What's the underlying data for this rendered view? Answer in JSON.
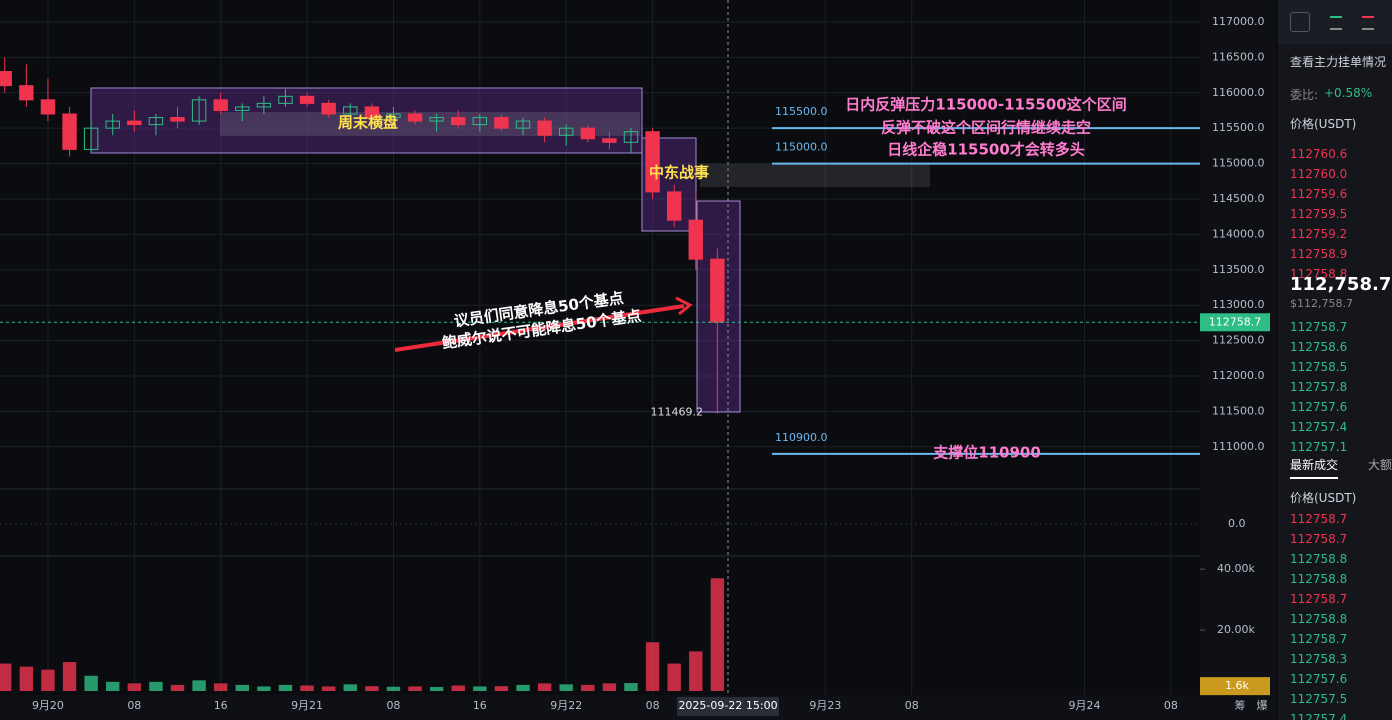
{
  "chart_data": {
    "type": "candlestick",
    "x": [
      -4,
      -2,
      0,
      2,
      4,
      6,
      8,
      10,
      12,
      14,
      16,
      18,
      20,
      22,
      24,
      26,
      28,
      30,
      32,
      34,
      36,
      38,
      40,
      42,
      44,
      46,
      48,
      50,
      52,
      54,
      56,
      58,
      60,
      62
    ],
    "ohlc": [
      [
        116300,
        116500,
        116000,
        116100
      ],
      [
        116100,
        116400,
        115800,
        115900
      ],
      [
        115900,
        116200,
        115600,
        115700
      ],
      [
        115700,
        115800,
        115100,
        115200
      ],
      [
        115200,
        115600,
        115150,
        115500
      ],
      [
        115500,
        115700,
        115400,
        115600
      ],
      [
        115600,
        115750,
        115450,
        115550
      ],
      [
        115550,
        115700,
        115400,
        115650
      ],
      [
        115650,
        115800,
        115500,
        115600
      ],
      [
        115600,
        115950,
        115550,
        115900
      ],
      [
        115900,
        116000,
        115700,
        115750
      ],
      [
        115750,
        115850,
        115600,
        115800
      ],
      [
        115800,
        115950,
        115700,
        115850
      ],
      [
        115850,
        116050,
        115800,
        115950
      ],
      [
        115950,
        116000,
        115800,
        115850
      ],
      [
        115850,
        115900,
        115650,
        115700
      ],
      [
        115700,
        115850,
        115600,
        115800
      ],
      [
        115800,
        115850,
        115550,
        115650
      ],
      [
        115650,
        115800,
        115500,
        115700
      ],
      [
        115700,
        115750,
        115550,
        115600
      ],
      [
        115600,
        115700,
        115450,
        115650
      ],
      [
        115650,
        115750,
        115500,
        115550
      ],
      [
        115550,
        115700,
        115450,
        115650
      ],
      [
        115650,
        115700,
        115450,
        115500
      ],
      [
        115500,
        115650,
        115400,
        115600
      ],
      [
        115600,
        115650,
        115300,
        115400
      ],
      [
        115400,
        115550,
        115250,
        115500
      ],
      [
        115500,
        115550,
        115300,
        115350
      ],
      [
        115350,
        115450,
        115200,
        115300
      ],
      [
        115300,
        115500,
        115150,
        115450
      ],
      [
        115450,
        115500,
        114500,
        114600
      ],
      [
        114600,
        114700,
        114100,
        114200
      ],
      [
        114200,
        114600,
        113500,
        113650
      ],
      [
        113650,
        113800,
        111469.2,
        112758.7
      ]
    ],
    "up_color": "#2ebd85",
    "down_color": "#f0344f",
    "xlim": [
      -4.44,
      106.7
    ],
    "xticks": [
      {
        "value": 0,
        "label": "9月20"
      },
      {
        "value": 8,
        "label": "08"
      },
      {
        "value": 16,
        "label": "16"
      },
      {
        "value": 24,
        "label": "9月21"
      },
      {
        "value": 32,
        "label": "08"
      },
      {
        "value": 40,
        "label": "16"
      },
      {
        "value": 48,
        "label": "9月22"
      },
      {
        "value": 56,
        "label": "08"
      },
      {
        "value": 72,
        "label": "9月23"
      },
      {
        "value": 80,
        "label": "08"
      },
      {
        "value": 96,
        "label": "9月24"
      },
      {
        "value": 104,
        "label": "08"
      }
    ],
    "ylim": [
      110390,
      117310
    ],
    "yticks": [
      {
        "value": 117000,
        "label": "117000.0"
      },
      {
        "value": 116500,
        "label": "116500.0"
      },
      {
        "value": 116000,
        "label": "116000.0"
      },
      {
        "value": 115500,
        "label": "115500.0"
      },
      {
        "value": 115000,
        "label": "115000.0"
      },
      {
        "value": 114500,
        "label": "114500.0"
      },
      {
        "value": 114000,
        "label": "114000.0"
      },
      {
        "value": 113500,
        "label": "113500.0"
      },
      {
        "value": 113000,
        "label": "113000.0"
      },
      {
        "value": 112500,
        "label": "112500.0"
      },
      {
        "value": 112000,
        "label": "112000.0"
      },
      {
        "value": 111500,
        "label": "111500.0"
      },
      {
        "value": 111000,
        "label": "111000.0"
      }
    ],
    "grid": true,
    "last_price": 112758.7,
    "low_price": 111469.2,
    "levels": [
      {
        "value": 115500,
        "label": "115500.0"
      },
      {
        "value": 115000,
        "label": "115000.0"
      },
      {
        "value": 110900,
        "label": "110900.0"
      }
    ],
    "macd_zero": {
      "value": 0,
      "label": "0.0"
    },
    "volume": {
      "values": [
        9000,
        8000,
        7000,
        9500,
        5000,
        3000,
        2500,
        3000,
        2000,
        3500,
        2500,
        2000,
        1500,
        2000,
        1800,
        1500,
        2200,
        1600,
        1400,
        1500,
        1300,
        1800,
        1500,
        1600,
        2000,
        2500,
        2200,
        2000,
        2500,
        2600,
        16000,
        9000,
        13000,
        37000
      ],
      "ylim": [
        0,
        43000
      ],
      "yticks": [
        {
          "value": 40000,
          "label": "40.00k"
        },
        {
          "value": 20000,
          "label": "20.00k"
        }
      ],
      "current": {
        "value": 1600,
        "label": "1.6k"
      }
    },
    "annotations": {
      "range_box": "周末横盘",
      "war_box": "中东战事",
      "news": [
        "议员们同意降息50个基点",
        "鲍威尔说不可能降息50个基点"
      ],
      "resistance": [
        "日内反弹压力115000-115500这个区间",
        "反弹不破这个区间行情继续走空",
        "日线企稳115500才会转多头"
      ],
      "support": "支撑位110900"
    },
    "crosshair_label": "2025-09-22 15:00",
    "footer": [
      "筹",
      "爆"
    ]
  },
  "order_book": {
    "title": "查看主力挂单情况",
    "ratio_label": "委比:",
    "ratio": "+0.58%",
    "price_header": "价格(USDT)",
    "asks": [
      "112760.6",
      "112760.0",
      "112759.6",
      "112759.5",
      "112759.2",
      "112758.9",
      "112758.8"
    ],
    "last": "112,758.7",
    "last_usd": "$112,758.7",
    "bids": [
      "112758.7",
      "112758.6",
      "112758.5",
      "112757.8",
      "112757.6",
      "112757.4",
      "112757.1"
    ]
  },
  "trades": {
    "tabs": [
      "最新成交",
      "大额"
    ],
    "price_header": "价格(USDT)",
    "rows": [
      {
        "price": "112758.7",
        "color": "#f0344f"
      },
      {
        "price": "112758.7",
        "color": "#f0344f"
      },
      {
        "price": "112758.8",
        "color": "#2ebd85"
      },
      {
        "price": "112758.8",
        "color": "#2ebd85"
      },
      {
        "price": "112758.7",
        "color": "#f0344f"
      },
      {
        "price": "112758.8",
        "color": "#2ebd85"
      },
      {
        "price": "112758.7",
        "color": "#2ebd85"
      },
      {
        "price": "112758.3",
        "color": "#2ebd85"
      },
      {
        "price": "112757.6",
        "color": "#2ebd85"
      },
      {
        "price": "112757.5",
        "color": "#2ebd85"
      },
      {
        "price": "112757.4",
        "color": "#2ebd85"
      }
    ]
  }
}
